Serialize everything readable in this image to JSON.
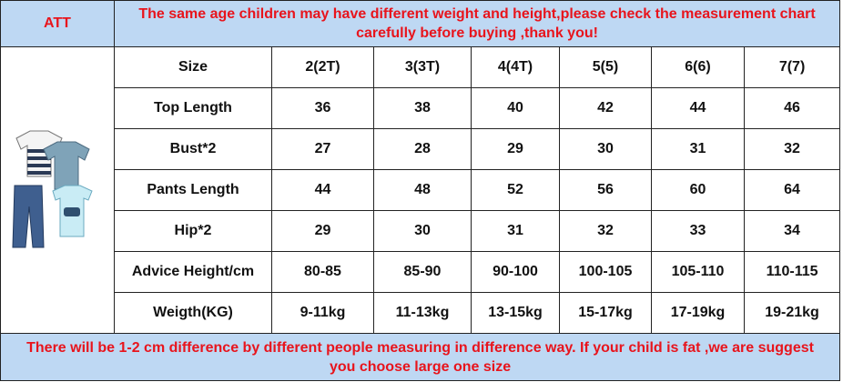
{
  "header": {
    "label": "ATT",
    "notice": "The same age children may have different weight and height,please check the measurement chart carefully before buying ,thank you!"
  },
  "table": {
    "columns": [
      "Size",
      "2(2T)",
      "3(3T)",
      "4(4T)",
      "5(5)",
      "6(6)",
      "7(7)"
    ],
    "rows": [
      [
        "Top Length",
        36,
        38,
        40,
        42,
        44,
        46
      ],
      [
        "Bust*2",
        27,
        28,
        29,
        30,
        31,
        32
      ],
      [
        "Pants Length",
        44,
        48,
        52,
        56,
        60,
        64
      ],
      [
        "Hip*2",
        29,
        30,
        31,
        32,
        33,
        34
      ],
      [
        "Advice Height/cm",
        "80-85",
        "85-90",
        "90-100",
        "100-105",
        "105-110",
        "110-115"
      ],
      [
        "Weigth(KG)",
        "9-11kg",
        "11-13kg",
        "13-15kg",
        "15-17kg",
        "17-19kg",
        "19-21kg"
      ]
    ]
  },
  "footer": {
    "notice": "There will be 1-2 cm difference by different people measuring in difference way. If your child is fat ,we are suggest you choose large one size"
  }
}
